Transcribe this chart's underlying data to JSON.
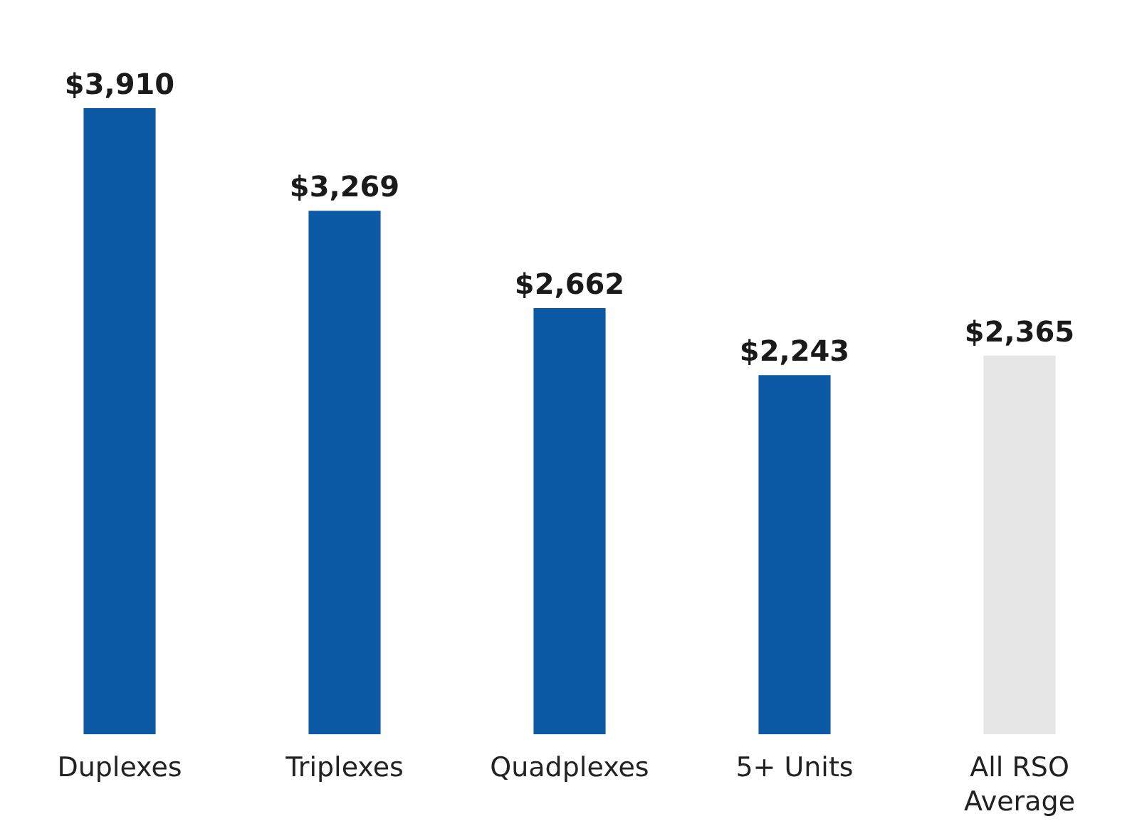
{
  "chart_data": {
    "type": "bar",
    "categories": [
      "Duplexes",
      "Triplexes",
      "Quadplexes",
      "5+ Units",
      "All RSO\nAverage"
    ],
    "values": [
      3910,
      3269,
      2662,
      2243,
      2365
    ],
    "colors": [
      "#0c5aa6",
      "#0c5aa6",
      "#0c5aa6",
      "#0c5aa6",
      "#e6e6e6"
    ],
    "value_labels": [
      "$3,910",
      "$3,269",
      "$2,662",
      "$2,243",
      "$2,365"
    ]
  }
}
